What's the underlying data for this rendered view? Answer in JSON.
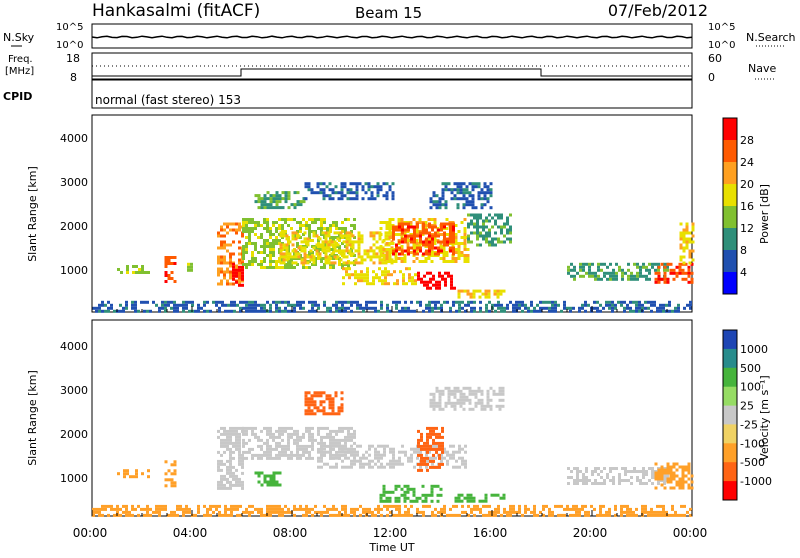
{
  "header": {
    "station": "Hankasalmi (fitACF)",
    "beam": "Beam 15",
    "date": "07/Feb/2012"
  },
  "noise_panel": {
    "left_label": "N.Sky",
    "right_label": "N.Search",
    "left_ticks": [
      "10^5",
      "10^0"
    ],
    "right_ticks": [
      "10^5",
      "10^0"
    ]
  },
  "freq_panel": {
    "left_label": "Freq.",
    "left_unit": "[MHz]",
    "right_label": "Nave",
    "left_ticks": [
      "18",
      "8"
    ],
    "right_ticks": [
      "60",
      "0"
    ]
  },
  "cpid_panel": {
    "label": "CPID",
    "text": "normal (fast stereo) 153"
  },
  "chart_data": [
    {
      "type": "heatmap",
      "name": "power",
      "ylabel": "Slant Range [km]",
      "ylim": [
        200,
        4600
      ],
      "yticks": [
        "1000",
        "2000",
        "3000",
        "4000"
      ],
      "xlim": [
        0,
        24
      ],
      "colorbar": {
        "label": "Power [dB]",
        "ticks": [
          "28",
          "24",
          "20",
          "16",
          "12",
          "8",
          "4"
        ],
        "colors": [
          "#ff0000",
          "#ff5a00",
          "#ffa020",
          "#e8e000",
          "#80c030",
          "#2f8f7a",
          "#2050b0",
          "#0000ff"
        ]
      },
      "echo_regions": [
        {
          "t": [
            1.0,
            2.3
          ],
          "r": [
            1050,
            1250
          ],
          "level": 3
        },
        {
          "t": [
            2.9,
            3.3
          ],
          "r": [
            850,
            1450
          ],
          "level": 6
        },
        {
          "t": [
            3.8,
            4.1
          ],
          "r": [
            1100,
            1300
          ],
          "level": 3
        },
        {
          "t": [
            5.0,
            6.0
          ],
          "r": [
            800,
            2200
          ],
          "level": 5
        },
        {
          "t": [
            5.6,
            6.0
          ],
          "r": [
            800,
            1300
          ],
          "level": 7
        },
        {
          "t": [
            6.0,
            10.5
          ],
          "r": [
            1200,
            2300
          ],
          "level": 3
        },
        {
          "t": [
            6.5,
            8.5
          ],
          "r": [
            2500,
            2900
          ],
          "level": 2
        },
        {
          "t": [
            7.5,
            12.0
          ],
          "r": [
            1300,
            2000
          ],
          "level": 4
        },
        {
          "t": [
            8.5,
            12.0
          ],
          "r": [
            2700,
            3100
          ],
          "level": 1
        },
        {
          "t": [
            10.0,
            13.0
          ],
          "r": [
            800,
            1200
          ],
          "level": 4
        },
        {
          "t": [
            11.5,
            15.0
          ],
          "r": [
            1300,
            2300
          ],
          "level": 4
        },
        {
          "t": [
            12.0,
            14.5
          ],
          "r": [
            1500,
            2200
          ],
          "level": 6
        },
        {
          "t": [
            13.0,
            14.5
          ],
          "r": [
            700,
            1100
          ],
          "level": 7
        },
        {
          "t": [
            13.5,
            16.0
          ],
          "r": [
            2500,
            3100
          ],
          "level": 1
        },
        {
          "t": [
            14.5,
            16.5
          ],
          "r": [
            500,
            700
          ],
          "level": 4
        },
        {
          "t": [
            15.0,
            16.8
          ],
          "r": [
            1700,
            2400
          ],
          "level": 2
        },
        {
          "t": [
            19.0,
            23.0
          ],
          "r": [
            900,
            1300
          ],
          "level": 2
        },
        {
          "t": [
            22.5,
            24.0
          ],
          "r": [
            850,
            1300
          ],
          "level": 6
        },
        {
          "t": [
            23.5,
            24.0
          ],
          "r": [
            1300,
            2200
          ],
          "level": 4
        },
        {
          "t": [
            0.0,
            24.0
          ],
          "r": [
            200,
            450
          ],
          "level": 1
        }
      ]
    },
    {
      "type": "heatmap",
      "name": "velocity",
      "ylabel": "Slant Range [km]",
      "ylim": [
        200,
        4600
      ],
      "yticks": [
        "1000",
        "2000",
        "3000",
        "4000"
      ],
      "xlabel": "Time UT",
      "xlim": [
        0,
        24
      ],
      "xticks": [
        "00:00",
        "04:00",
        "08:00",
        "12:00",
        "16:00",
        "20:00",
        "00:00"
      ],
      "colorbar": {
        "label": "Velocity [m s⁻¹]",
        "ticks": [
          "1000",
          "500",
          "100",
          "25",
          "-25",
          "-100",
          "-500",
          "-1000"
        ],
        "colors": [
          "#1e46b4",
          "#288c8c",
          "#46b43c",
          "#96dc64",
          "#c8c8c8",
          "#f0d264",
          "#ffa028",
          "#ff6414",
          "#ff0000"
        ]
      },
      "echo_regions": [
        {
          "t": [
            1.0,
            2.3
          ],
          "r": [
            1050,
            1250
          ],
          "v": -100
        },
        {
          "t": [
            2.9,
            3.3
          ],
          "r": [
            850,
            1450
          ],
          "v": -100
        },
        {
          "t": [
            5.0,
            6.0
          ],
          "r": [
            800,
            2200
          ],
          "v": 0
        },
        {
          "t": [
            6.0,
            10.5
          ],
          "r": [
            1500,
            2200
          ],
          "v": 0
        },
        {
          "t": [
            6.5,
            7.5
          ],
          "r": [
            900,
            1200
          ],
          "v": 100
        },
        {
          "t": [
            8.5,
            10.0
          ],
          "r": [
            2500,
            3000
          ],
          "v": -500
        },
        {
          "t": [
            9.0,
            15.0
          ],
          "r": [
            1300,
            1800
          ],
          "v": 0
        },
        {
          "t": [
            11.5,
            14.0
          ],
          "r": [
            500,
            900
          ],
          "v": 100
        },
        {
          "t": [
            13.5,
            16.5
          ],
          "r": [
            2600,
            3100
          ],
          "v": 0
        },
        {
          "t": [
            14.5,
            16.5
          ],
          "r": [
            500,
            700
          ],
          "v": 100
        },
        {
          "t": [
            13.0,
            14.0
          ],
          "r": [
            1200,
            2200
          ],
          "v": -500
        },
        {
          "t": [
            19.0,
            23.0
          ],
          "r": [
            900,
            1300
          ],
          "v": 0
        },
        {
          "t": [
            22.5,
            24.0
          ],
          "r": [
            850,
            1400
          ],
          "v": -100
        },
        {
          "t": [
            0.0,
            24.0
          ],
          "r": [
            200,
            450
          ],
          "v": -100
        }
      ]
    }
  ]
}
